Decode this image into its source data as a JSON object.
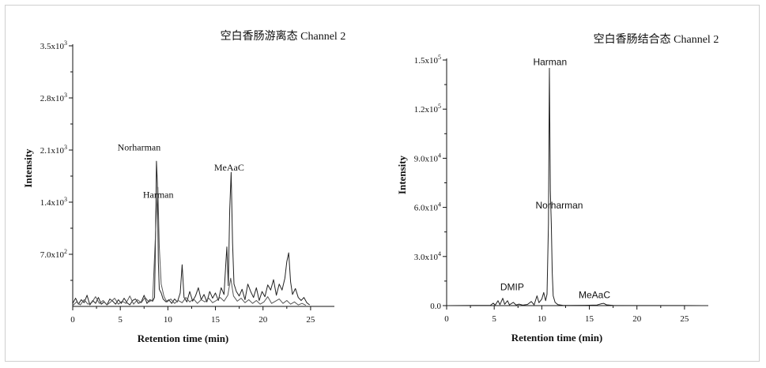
{
  "chart_data": [
    {
      "type": "line",
      "title": "空白香肠游离态 Channel 2",
      "xlabel": "Retention time (min)",
      "ylabel": "Intensity",
      "xlim": [
        0,
        27.5
      ],
      "ylim": [
        0,
        3500
      ],
      "xticks": [
        0,
        5,
        10,
        15,
        20,
        25
      ],
      "xtick_labels": [
        "0",
        "5",
        "10",
        "15",
        "20",
        "25"
      ],
      "yticks": [
        700,
        1400,
        2100,
        2800,
        3500
      ],
      "ytick_labels": [
        {
          "mantissa": "7.0x10",
          "exp": "2"
        },
        {
          "mantissa": "1.4x10",
          "exp": "3"
        },
        {
          "mantissa": "2.1x10",
          "exp": "3"
        },
        {
          "mantissa": "2.8x10",
          "exp": "3"
        },
        {
          "mantissa": "3.5x10",
          "exp": "3"
        }
      ],
      "grid": false,
      "series": [
        {
          "color": "#222222",
          "points": [
            [
              0,
              40
            ],
            [
              0.3,
              110
            ],
            [
              0.6,
              30
            ],
            [
              0.9,
              90
            ],
            [
              1.2,
              50
            ],
            [
              1.5,
              150
            ],
            [
              1.8,
              20
            ],
            [
              2.1,
              80
            ],
            [
              2.4,
              40
            ],
            [
              2.7,
              120
            ],
            [
              3,
              30
            ],
            [
              3.3,
              60
            ],
            [
              3.6,
              20
            ],
            [
              3.9,
              100
            ],
            [
              4.2,
              70
            ],
            [
              4.5,
              30
            ],
            [
              4.8,
              90
            ],
            [
              5.1,
              40
            ],
            [
              5.4,
              110
            ],
            [
              5.7,
              50
            ],
            [
              6,
              20
            ],
            [
              6.3,
              80
            ],
            [
              6.6,
              100
            ],
            [
              6.9,
              40
            ],
            [
              7.2,
              60
            ],
            [
              7.5,
              150
            ],
            [
              7.8,
              40
            ],
            [
              8.1,
              90
            ],
            [
              8.4,
              70
            ],
            [
              8.6,
              120
            ],
            [
              8.7,
              900
            ],
            [
              8.8,
              1950
            ],
            [
              8.9,
              1650
            ],
            [
              9.0,
              600
            ],
            [
              9.1,
              230
            ],
            [
              9.3,
              180
            ],
            [
              9.5,
              100
            ],
            [
              9.8,
              60
            ],
            [
              10.1,
              90
            ],
            [
              10.4,
              40
            ],
            [
              10.7,
              100
            ],
            [
              11.0,
              60
            ],
            [
              11.3,
              180
            ],
            [
              11.5,
              560
            ],
            [
              11.7,
              120
            ],
            [
              12.0,
              60
            ],
            [
              12.3,
              200
            ],
            [
              12.6,
              70
            ],
            [
              12.9,
              140
            ],
            [
              13.2,
              250
            ],
            [
              13.5,
              90
            ],
            [
              13.8,
              160
            ],
            [
              14.1,
              60
            ],
            [
              14.4,
              200
            ],
            [
              14.7,
              110
            ],
            [
              15.0,
              180
            ],
            [
              15.3,
              80
            ],
            [
              15.6,
              250
            ],
            [
              15.9,
              160
            ],
            [
              16.1,
              600
            ],
            [
              16.2,
              800
            ],
            [
              16.35,
              280
            ],
            [
              16.5,
              1300
            ],
            [
              16.65,
              1800
            ],
            [
              16.8,
              850
            ],
            [
              16.95,
              300
            ],
            [
              17.2,
              200
            ],
            [
              17.5,
              140
            ],
            [
              17.8,
              230
            ],
            [
              18.1,
              90
            ],
            [
              18.4,
              300
            ],
            [
              18.7,
              200
            ],
            [
              19.0,
              120
            ],
            [
              19.3,
              250
            ],
            [
              19.6,
              80
            ],
            [
              19.9,
              200
            ],
            [
              20.2,
              130
            ],
            [
              20.5,
              290
            ],
            [
              20.8,
              220
            ],
            [
              21.1,
              360
            ],
            [
              21.4,
              150
            ],
            [
              21.7,
              300
            ],
            [
              22.0,
              220
            ],
            [
              22.3,
              380
            ],
            [
              22.5,
              600
            ],
            [
              22.7,
              720
            ],
            [
              22.9,
              330
            ],
            [
              23.1,
              160
            ],
            [
              23.4,
              240
            ],
            [
              23.7,
              120
            ],
            [
              24.0,
              80
            ],
            [
              24.3,
              120
            ],
            [
              24.6,
              50
            ],
            [
              24.9,
              20
            ]
          ]
        },
        {
          "color": "#555555",
          "points": [
            [
              0,
              10
            ],
            [
              0.4,
              60
            ],
            [
              0.8,
              20
            ],
            [
              1.2,
              90
            ],
            [
              1.6,
              30
            ],
            [
              2.0,
              50
            ],
            [
              2.4,
              130
            ],
            [
              2.8,
              40
            ],
            [
              3.2,
              80
            ],
            [
              3.6,
              20
            ],
            [
              4.0,
              60
            ],
            [
              4.4,
              110
            ],
            [
              4.8,
              30
            ],
            [
              5.2,
              70
            ],
            [
              5.6,
              40
            ],
            [
              6.0,
              140
            ],
            [
              6.4,
              30
            ],
            [
              6.8,
              90
            ],
            [
              7.2,
              50
            ],
            [
              7.6,
              120
            ],
            [
              8.0,
              60
            ],
            [
              8.4,
              90
            ],
            [
              8.8,
              1250
            ],
            [
              8.95,
              1600
            ],
            [
              9.1,
              800
            ],
            [
              9.3,
              300
            ],
            [
              9.6,
              130
            ],
            [
              9.9,
              60
            ],
            [
              10.3,
              100
            ],
            [
              10.7,
              40
            ],
            [
              11.1,
              80
            ],
            [
              11.5,
              50
            ],
            [
              11.9,
              120
            ],
            [
              12.3,
              60
            ],
            [
              12.7,
              100
            ],
            [
              13.1,
              40
            ],
            [
              13.5,
              90
            ],
            [
              13.9,
              60
            ],
            [
              14.3,
              110
            ],
            [
              14.7,
              50
            ],
            [
              15.1,
              80
            ],
            [
              15.5,
              120
            ],
            [
              15.9,
              70
            ],
            [
              16.3,
              150
            ],
            [
              16.6,
              380
            ],
            [
              16.9,
              140
            ],
            [
              17.3,
              70
            ],
            [
              17.7,
              110
            ],
            [
              18.1,
              50
            ],
            [
              18.5,
              90
            ],
            [
              18.9,
              40
            ],
            [
              19.3,
              80
            ],
            [
              19.7,
              30
            ],
            [
              20.1,
              60
            ],
            [
              20.5,
              130
            ],
            [
              20.9,
              40
            ],
            [
              21.3,
              70
            ],
            [
              21.7,
              100
            ],
            [
              22.1,
              40
            ],
            [
              22.5,
              80
            ],
            [
              22.9,
              30
            ],
            [
              23.3,
              60
            ],
            [
              23.7,
              20
            ],
            [
              24.1,
              40
            ],
            [
              24.5,
              15
            ]
          ]
        }
      ],
      "annotations": [
        {
          "text": "Norharman",
          "x": 8.8,
          "y": 2000
        },
        {
          "text": "Harman",
          "x": 10.4,
          "y": 1500
        },
        {
          "text": "MeAaC",
          "x": 17.6,
          "y": 1750
        }
      ]
    },
    {
      "type": "line",
      "title": "空白香肠结合态 Channel 2",
      "xlabel": "Retention time (min)",
      "ylabel": "Intensity",
      "xlim": [
        0,
        27.5
      ],
      "ylim": [
        0,
        150000
      ],
      "xticks": [
        0,
        5,
        10,
        15,
        20,
        25
      ],
      "xtick_labels": [
        "0",
        "5",
        "10",
        "15",
        "20",
        "25"
      ],
      "yticks": [
        0,
        30000,
        60000,
        90000,
        120000,
        150000
      ],
      "ytick_labels": [
        {
          "mantissa": "0.0",
          "exp": ""
        },
        {
          "mantissa": "3.0x10",
          "exp": "4"
        },
        {
          "mantissa": "6.0x10",
          "exp": "4"
        },
        {
          "mantissa": "9.0x10",
          "exp": "4"
        },
        {
          "mantissa": "1.2x10",
          "exp": "5"
        },
        {
          "mantissa": "1.5x10",
          "exp": "5"
        }
      ],
      "grid": false,
      "series": [
        {
          "color": "#222222",
          "points": [
            [
              0,
              0
            ],
            [
              4.6,
              200
            ],
            [
              4.9,
              1500
            ],
            [
              5.1,
              300
            ],
            [
              5.4,
              3000
            ],
            [
              5.6,
              600
            ],
            [
              5.9,
              4500
            ],
            [
              6.1,
              800
            ],
            [
              6.4,
              3000
            ],
            [
              6.6,
              500
            ],
            [
              7.0,
              2000
            ],
            [
              7.3,
              400
            ],
            [
              7.6,
              900
            ],
            [
              8.0,
              300
            ],
            [
              8.5,
              700
            ],
            [
              8.9,
              2500
            ],
            [
              9.2,
              500
            ],
            [
              9.5,
              6000
            ],
            [
              9.7,
              1800
            ],
            [
              10.0,
              4000
            ],
            [
              10.2,
              8000
            ],
            [
              10.4,
              3000
            ],
            [
              10.55,
              7000
            ],
            [
              10.7,
              50000
            ],
            [
              10.8,
              145000
            ],
            [
              10.9,
              70000
            ],
            [
              11.0,
              50000
            ],
            [
              11.1,
              20000
            ],
            [
              11.2,
              6000
            ],
            [
              11.4,
              2000
            ],
            [
              11.7,
              600
            ],
            [
              12.2,
              200
            ],
            [
              13.0,
              100
            ],
            [
              14.5,
              200
            ],
            [
              15.8,
              400
            ],
            [
              16.3,
              1200
            ],
            [
              16.5,
              1400
            ],
            [
              16.8,
              500
            ],
            [
              17.5,
              150
            ],
            [
              20,
              60
            ],
            [
              25,
              30
            ],
            [
              27.5,
              20
            ]
          ]
        }
      ],
      "annotations": [
        {
          "text": "Harman",
          "x": 11.2,
          "y": 146000
        },
        {
          "text": "Norharman",
          "x": 13.0,
          "y": 56000
        },
        {
          "text": "DMIP",
          "x": 7.3,
          "y": 8500
        },
        {
          "text": "MeAaC",
          "x": 16.7,
          "y": 4000
        }
      ]
    }
  ]
}
